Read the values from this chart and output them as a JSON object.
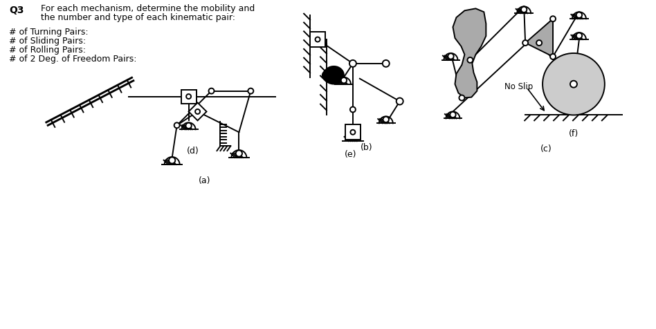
{
  "bg_color": "#ffffff",
  "line_color": "#000000",
  "gray_fill": "#aaaaaa",
  "light_gray": "#cccccc",
  "title": "Q3",
  "question_line1": "For each mechanism, determine the mobility and",
  "question_line2": "the number and type of each kinematic pair:",
  "labels": [
    "# of Turning Pairs:",
    "# of Sliding Pairs:",
    "# of Rolling Pairs:",
    "# of 2 Deg. of Freedom Pairs:"
  ],
  "sub_labels": [
    "(a)",
    "(b)",
    "(c)",
    "(d)",
    "(e)",
    "(f)"
  ]
}
